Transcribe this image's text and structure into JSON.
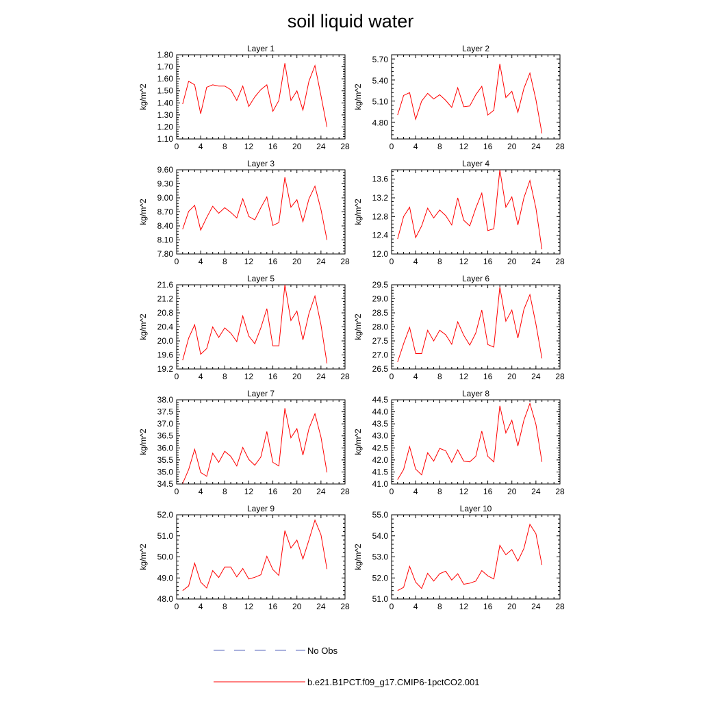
{
  "title": "soil liquid water",
  "colors": {
    "series": "#ff0000",
    "obs": "#5566bb",
    "axis": "#000000"
  },
  "legend": {
    "items": [
      {
        "label": "No Obs",
        "color": "#5566bb",
        "style": "dashed"
      },
      {
        "label": "b.e21.B1PCT.f09_g17.CMIP6-1pctCO2.001",
        "color": "#ff0000",
        "style": "solid"
      }
    ]
  },
  "chart_data": [
    {
      "type": "line",
      "title": "Layer 1",
      "ylabel": "kg/m^2",
      "xlim": [
        0,
        28
      ],
      "ylim": [
        1.1,
        1.8
      ],
      "xticks": [
        "0",
        "4",
        "8",
        "12",
        "16",
        "20",
        "24",
        "28"
      ],
      "yticks": [
        "1.10",
        "1.20",
        "1.30",
        "1.40",
        "1.50",
        "1.60",
        "1.70",
        "1.80"
      ],
      "x": [
        1,
        2,
        3,
        4,
        5,
        6,
        7,
        8,
        9,
        10,
        11,
        12,
        13,
        14,
        15,
        16,
        17,
        18,
        19,
        20,
        21,
        22,
        23,
        24,
        25
      ],
      "series": [
        {
          "name": "b.e21.B1PCT.f09_g17.CMIP6-1pctCO2.001",
          "values": [
            1.39,
            1.58,
            1.55,
            1.31,
            1.53,
            1.55,
            1.54,
            1.54,
            1.51,
            1.42,
            1.54,
            1.37,
            1.45,
            1.51,
            1.55,
            1.33,
            1.42,
            1.73,
            1.42,
            1.5,
            1.34,
            1.58,
            1.71,
            1.46,
            1.2
          ]
        }
      ]
    },
    {
      "type": "line",
      "title": "Layer 2",
      "ylabel": "kg/m^2",
      "xlim": [
        0,
        28
      ],
      "ylim": [
        4.57,
        5.77
      ],
      "xticks": [
        "0",
        "4",
        "8",
        "12",
        "16",
        "20",
        "24",
        "28"
      ],
      "yticks": [
        "4.80",
        "5.10",
        "5.40",
        "5.70"
      ],
      "x": [
        1,
        2,
        3,
        4,
        5,
        6,
        7,
        8,
        9,
        10,
        11,
        12,
        13,
        14,
        15,
        16,
        17,
        18,
        19,
        20,
        21,
        22,
        23,
        24,
        25
      ],
      "series": [
        {
          "name": "b.e21.B1PCT.f09_g17.CMIP6-1pctCO2.001",
          "values": [
            4.91,
            5.19,
            5.23,
            4.85,
            5.11,
            5.22,
            5.14,
            5.2,
            5.12,
            5.02,
            5.3,
            5.03,
            5.04,
            5.2,
            5.32,
            4.91,
            4.98,
            5.64,
            5.16,
            5.25,
            4.95,
            5.29,
            5.51,
            5.13,
            4.65
          ]
        }
      ]
    },
    {
      "type": "line",
      "title": "Layer 3",
      "ylabel": "kg/m^2",
      "xlim": [
        0,
        28
      ],
      "ylim": [
        7.8,
        9.6
      ],
      "xticks": [
        "0",
        "4",
        "8",
        "12",
        "16",
        "20",
        "24",
        "28"
      ],
      "yticks": [
        "7.80",
        "8.10",
        "8.40",
        "8.70",
        "9.00",
        "9.30",
        "9.60"
      ],
      "x": [
        1,
        2,
        3,
        4,
        5,
        6,
        7,
        8,
        9,
        10,
        11,
        12,
        13,
        14,
        15,
        16,
        17,
        18,
        19,
        20,
        21,
        22,
        23,
        24,
        25
      ],
      "series": [
        {
          "name": "b.e21.B1PCT.f09_g17.CMIP6-1pctCO2.001",
          "values": [
            8.33,
            8.71,
            8.84,
            8.31,
            8.58,
            8.82,
            8.67,
            8.79,
            8.69,
            8.57,
            8.98,
            8.6,
            8.53,
            8.79,
            9.02,
            8.41,
            8.47,
            9.44,
            8.8,
            8.96,
            8.49,
            8.98,
            9.25,
            8.75,
            8.1
          ]
        }
      ]
    },
    {
      "type": "line",
      "title": "Layer 4",
      "ylabel": "kg/m^2",
      "xlim": [
        0,
        28
      ],
      "ylim": [
        12.0,
        13.8
      ],
      "xticks": [
        "0",
        "4",
        "8",
        "12",
        "16",
        "20",
        "24",
        "28"
      ],
      "yticks": [
        "12.0",
        "12.4",
        "12.8",
        "13.2",
        "13.6"
      ],
      "x": [
        1,
        2,
        3,
        4,
        5,
        6,
        7,
        8,
        9,
        10,
        11,
        12,
        13,
        14,
        15,
        16,
        17,
        18,
        19,
        20,
        21,
        22,
        23,
        24,
        25
      ],
      "series": [
        {
          "name": "b.e21.B1PCT.f09_g17.CMIP6-1pctCO2.001",
          "values": [
            12.32,
            12.8,
            13.0,
            12.35,
            12.6,
            12.98,
            12.77,
            12.94,
            12.82,
            12.62,
            13.2,
            12.72,
            12.6,
            12.98,
            13.3,
            12.5,
            12.54,
            13.8,
            13.0,
            13.22,
            12.62,
            13.2,
            13.57,
            12.98,
            12.1
          ]
        }
      ]
    },
    {
      "type": "line",
      "title": "Layer 5",
      "ylabel": "kg/m^2",
      "xlim": [
        0,
        28
      ],
      "ylim": [
        19.2,
        21.6
      ],
      "xticks": [
        "0",
        "4",
        "8",
        "12",
        "16",
        "20",
        "24",
        "28"
      ],
      "yticks": [
        "19.2",
        "19.6",
        "20.0",
        "20.4",
        "20.8",
        "21.2",
        "21.6"
      ],
      "x": [
        1,
        2,
        3,
        4,
        5,
        6,
        7,
        8,
        9,
        10,
        11,
        12,
        13,
        14,
        15,
        16,
        17,
        18,
        19,
        20,
        21,
        22,
        23,
        24,
        25
      ],
      "series": [
        {
          "name": "b.e21.B1PCT.f09_g17.CMIP6-1pctCO2.001",
          "values": [
            19.45,
            20.08,
            20.46,
            19.62,
            19.78,
            20.4,
            20.1,
            20.37,
            20.22,
            19.98,
            20.71,
            20.14,
            19.92,
            20.37,
            20.92,
            19.86,
            19.86,
            21.6,
            20.58,
            20.85,
            20.03,
            20.78,
            21.28,
            20.46,
            19.36
          ]
        }
      ]
    },
    {
      "type": "line",
      "title": "Layer 6",
      "ylabel": "kg/m^2",
      "xlim": [
        0,
        28
      ],
      "ylim": [
        26.5,
        29.5
      ],
      "xticks": [
        "0",
        "4",
        "8",
        "12",
        "16",
        "20",
        "24",
        "28"
      ],
      "yticks": [
        "26.5",
        "27.0",
        "27.5",
        "28.0",
        "28.5",
        "29.0",
        "29.5"
      ],
      "x": [
        1,
        2,
        3,
        4,
        5,
        6,
        7,
        8,
        9,
        10,
        11,
        12,
        13,
        14,
        15,
        16,
        17,
        18,
        19,
        20,
        21,
        22,
        23,
        24,
        25
      ],
      "series": [
        {
          "name": "b.e21.B1PCT.f09_g17.CMIP6-1pctCO2.001",
          "values": [
            26.75,
            27.4,
            27.98,
            27.05,
            27.05,
            27.88,
            27.5,
            27.88,
            27.72,
            27.38,
            28.18,
            27.7,
            27.35,
            27.78,
            28.6,
            27.37,
            27.28,
            29.42,
            28.2,
            28.6,
            27.6,
            28.62,
            29.15,
            28.1,
            26.88
          ]
        }
      ]
    },
    {
      "type": "line",
      "title": "Layer 7",
      "ylabel": "kg/m^2",
      "xlim": [
        0,
        28
      ],
      "ylim": [
        34.5,
        38.0
      ],
      "xticks": [
        "0",
        "4",
        "8",
        "12",
        "16",
        "20",
        "24",
        "28"
      ],
      "yticks": [
        "34.5",
        "35.0",
        "35.5",
        "36.0",
        "36.5",
        "37.0",
        "37.5",
        "38.0"
      ],
      "x": [
        1,
        2,
        3,
        4,
        5,
        6,
        7,
        8,
        9,
        10,
        11,
        12,
        13,
        14,
        15,
        16,
        17,
        18,
        19,
        20,
        21,
        22,
        23,
        24,
        25
      ],
      "series": [
        {
          "name": "b.e21.B1PCT.f09_g17.CMIP6-1pctCO2.001",
          "values": [
            34.52,
            35.1,
            35.94,
            34.98,
            34.82,
            35.78,
            35.4,
            35.86,
            35.65,
            35.25,
            36.02,
            35.52,
            35.28,
            35.62,
            36.68,
            35.4,
            35.25,
            37.65,
            36.42,
            36.8,
            35.7,
            36.8,
            37.42,
            36.45,
            34.98
          ]
        }
      ]
    },
    {
      "type": "line",
      "title": "Layer 8",
      "ylabel": "kg/m^2",
      "xlim": [
        0,
        28
      ],
      "ylim": [
        41.0,
        44.5
      ],
      "xticks": [
        "0",
        "4",
        "8",
        "12",
        "16",
        "20",
        "24",
        "28"
      ],
      "yticks": [
        "41.0",
        "41.5",
        "42.0",
        "42.5",
        "43.0",
        "43.5",
        "44.0",
        "44.5"
      ],
      "x": [
        1,
        2,
        3,
        4,
        5,
        6,
        7,
        8,
        9,
        10,
        11,
        12,
        13,
        14,
        15,
        16,
        17,
        18,
        19,
        20,
        21,
        22,
        23,
        24,
        25
      ],
      "series": [
        {
          "name": "b.e21.B1PCT.f09_g17.CMIP6-1pctCO2.001",
          "values": [
            41.18,
            41.6,
            42.55,
            41.62,
            41.38,
            42.3,
            41.95,
            42.48,
            42.38,
            41.9,
            42.42,
            41.95,
            41.92,
            42.15,
            43.2,
            42.15,
            41.92,
            44.25,
            43.12,
            43.65,
            42.58,
            43.65,
            44.35,
            43.48,
            41.92
          ]
        }
      ]
    },
    {
      "type": "line",
      "title": "Layer 9",
      "ylabel": "kg/m^2",
      "xlim": [
        0,
        28
      ],
      "ylim": [
        48.0,
        52.0
      ],
      "xticks": [
        "0",
        "4",
        "8",
        "12",
        "16",
        "20",
        "24",
        "28"
      ],
      "yticks": [
        "48.0",
        "49.0",
        "50.0",
        "51.0",
        "52.0"
      ],
      "x": [
        1,
        2,
        3,
        4,
        5,
        6,
        7,
        8,
        9,
        10,
        11,
        12,
        13,
        14,
        15,
        16,
        17,
        18,
        19,
        20,
        21,
        22,
        23,
        24,
        25
      ],
      "series": [
        {
          "name": "b.e21.B1PCT.f09_g17.CMIP6-1pctCO2.001",
          "values": [
            48.4,
            48.62,
            49.7,
            48.8,
            48.52,
            49.35,
            49.02,
            49.52,
            49.52,
            49.05,
            49.45,
            48.95,
            49.03,
            49.15,
            50.03,
            49.4,
            49.12,
            51.25,
            50.42,
            50.8,
            49.9,
            50.8,
            51.75,
            51.05,
            49.42
          ]
        }
      ]
    },
    {
      "type": "line",
      "title": "Layer 10",
      "ylabel": "kg/m^2",
      "xlim": [
        0,
        28
      ],
      "ylim": [
        51.0,
        55.0
      ],
      "xticks": [
        "0",
        "4",
        "8",
        "12",
        "16",
        "20",
        "24",
        "28"
      ],
      "yticks": [
        "51.0",
        "52.0",
        "53.0",
        "54.0",
        "55.0"
      ],
      "x": [
        1,
        2,
        3,
        4,
        5,
        6,
        7,
        8,
        9,
        10,
        11,
        12,
        13,
        14,
        15,
        16,
        17,
        18,
        19,
        20,
        21,
        22,
        23,
        24,
        25
      ],
      "series": [
        {
          "name": "b.e21.B1PCT.f09_g17.CMIP6-1pctCO2.001",
          "values": [
            51.4,
            51.55,
            52.55,
            51.8,
            51.5,
            52.22,
            51.85,
            52.2,
            52.32,
            51.9,
            52.2,
            51.7,
            51.75,
            51.85,
            52.35,
            52.1,
            51.95,
            53.55,
            53.1,
            53.35,
            52.8,
            53.4,
            54.55,
            54.1,
            52.62
          ]
        }
      ]
    }
  ]
}
